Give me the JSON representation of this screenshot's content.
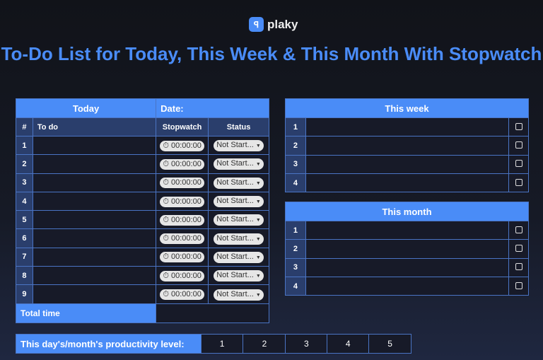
{
  "logo": {
    "text": "plaky"
  },
  "title": "To-Do List for Today, This Week & This Month With Stopwatch",
  "today": {
    "header": "Today",
    "date_label": "Date:",
    "columns": [
      "#",
      "To do",
      "Stopwatch",
      "Status"
    ],
    "rows": [
      {
        "n": "1",
        "todo": "",
        "time": "00:00:00",
        "status": "Not Start..."
      },
      {
        "n": "2",
        "todo": "",
        "time": "00:00:00",
        "status": "Not Start..."
      },
      {
        "n": "3",
        "todo": "",
        "time": "00:00:00",
        "status": "Not Start..."
      },
      {
        "n": "4",
        "todo": "",
        "time": "00:00:00",
        "status": "Not Start..."
      },
      {
        "n": "5",
        "todo": "",
        "time": "00:00:00",
        "status": "Not Start..."
      },
      {
        "n": "6",
        "todo": "",
        "time": "00:00:00",
        "status": "Not Start..."
      },
      {
        "n": "7",
        "todo": "",
        "time": "00:00:00",
        "status": "Not Start..."
      },
      {
        "n": "8",
        "todo": "",
        "time": "00:00:00",
        "status": "Not Start..."
      },
      {
        "n": "9",
        "todo": "",
        "time": "00:00:00",
        "status": "Not Start..."
      }
    ],
    "total_label": "Total time"
  },
  "week": {
    "header": "This week",
    "rows": [
      "1",
      "2",
      "3",
      "4"
    ]
  },
  "month": {
    "header": "This month",
    "rows": [
      "1",
      "2",
      "3",
      "4"
    ]
  },
  "productivity": {
    "label": "This day's/month's productivity level:",
    "levels": [
      "1",
      "2",
      "3",
      "4",
      "5"
    ]
  }
}
